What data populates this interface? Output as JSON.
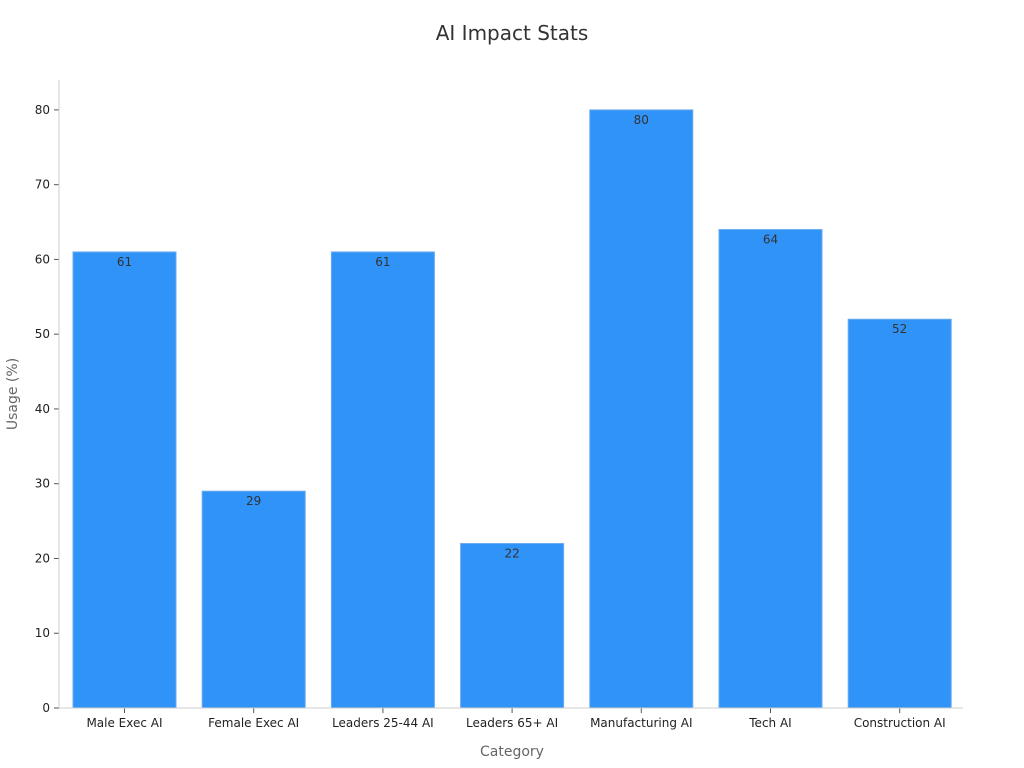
{
  "chart_data": {
    "type": "bar",
    "title": "AI Impact Stats",
    "xlabel": "Category",
    "ylabel": "Usage (%)",
    "categories": [
      "Male Exec AI",
      "Female Exec AI",
      "Leaders 25-44 AI",
      "Leaders 65+ AI",
      "Manufacturing AI",
      "Tech AI",
      "Construction AI"
    ],
    "values": [
      61,
      29,
      61,
      22,
      80,
      64,
      52
    ],
    "ylim": [
      0,
      84
    ],
    "yticks": [
      0,
      10,
      20,
      30,
      40,
      50,
      60,
      70,
      80
    ],
    "grid": false,
    "legend": "none",
    "colors": {
      "bar": "#2f93f8",
      "bar_edge": "#6aaaf0"
    }
  }
}
